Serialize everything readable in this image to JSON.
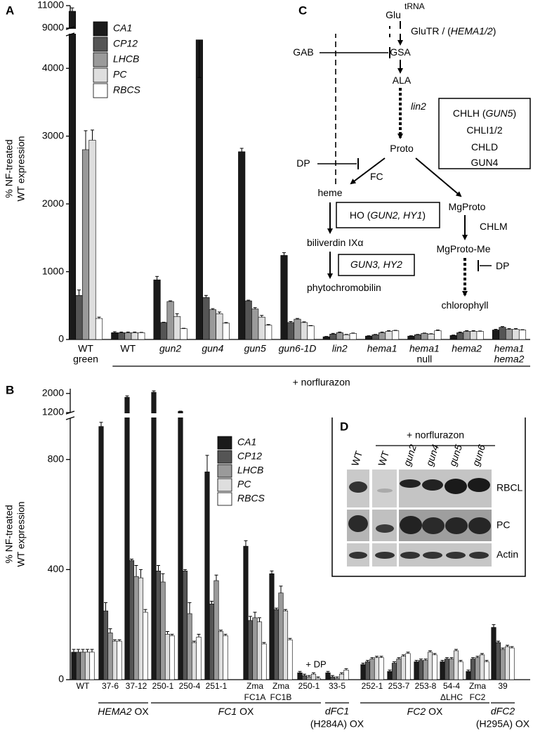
{
  "chart_data": [
    {
      "type": "bar",
      "panel_label": "A",
      "y_label": [
        "% NF-treated",
        "WT expression"
      ],
      "categories": [
        [
          "WT",
          "green"
        ],
        [
          "WT"
        ],
        [
          "gun2"
        ],
        [
          "gun4"
        ],
        [
          "gun5"
        ],
        [
          "gun6-1D"
        ],
        [
          "lin2"
        ],
        [
          "hema1"
        ],
        [
          "hema1",
          "null"
        ],
        [
          "hema2"
        ],
        [
          "hema1",
          "hema2"
        ]
      ],
      "category_italic": [
        [
          false,
          false
        ],
        [
          false
        ],
        [
          true
        ],
        [
          true
        ],
        [
          true
        ],
        [
          true
        ],
        [
          true
        ],
        [
          true
        ],
        [
          true,
          false
        ],
        [
          true
        ],
        [
          true,
          true
        ]
      ],
      "series": [
        {
          "name": "CA1",
          "color": "#1a1a1a",
          "values": [
            10500,
            100,
            880,
            4420,
            2770,
            1240,
            40,
            50,
            50,
            60,
            140
          ],
          "errors": [
            300,
            15,
            50,
            190,
            50,
            40,
            5,
            5,
            5,
            5,
            10
          ]
        },
        {
          "name": "CP12",
          "color": "#555555",
          "values": [
            650,
            100,
            250,
            620,
            570,
            250,
            80,
            70,
            70,
            100,
            180
          ],
          "errors": [
            80,
            10,
            5,
            30,
            10,
            15,
            10,
            5,
            5,
            10,
            10
          ]
        },
        {
          "name": "LHCB",
          "color": "#9a9a9a",
          "values": [
            2800,
            100,
            560,
            440,
            450,
            300,
            100,
            100,
            90,
            120,
            150
          ],
          "errors": [
            280,
            10,
            10,
            15,
            20,
            10,
            10,
            10,
            5,
            10,
            10
          ]
        },
        {
          "name": "PC",
          "color": "#dedede",
          "values": [
            2940,
            100,
            340,
            380,
            330,
            250,
            70,
            120,
            80,
            120,
            150
          ],
          "errors": [
            150,
            10,
            40,
            25,
            25,
            10,
            5,
            10,
            5,
            10,
            10
          ]
        },
        {
          "name": "RBCS",
          "color": "#ffffff",
          "values": [
            310,
            100,
            160,
            240,
            210,
            200,
            90,
            130,
            130,
            120,
            140
          ],
          "errors": [
            20,
            5,
            5,
            10,
            10,
            5,
            5,
            5,
            10,
            5,
            5
          ]
        }
      ],
      "ylim": [
        0,
        11000
      ],
      "ybreak": [
        4500,
        9000
      ],
      "yticks": [
        0,
        1000,
        2000,
        3000,
        4000,
        9000,
        11000
      ],
      "annotation": "+ norflurazon",
      "legend": true
    },
    {
      "type": "bar",
      "panel_label": "B",
      "y_label": [
        "% NF-treated",
        "WT expression"
      ],
      "categories": [
        [
          "WT"
        ],
        [
          "37-6"
        ],
        [
          "37-12"
        ],
        [
          "250-1"
        ],
        [
          "250-4"
        ],
        [
          "251-1"
        ],
        [
          "Zma",
          "FC1A"
        ],
        [
          "Zma",
          "FC1B"
        ],
        [
          "250-1"
        ],
        [
          "33-5"
        ],
        [
          "252-1"
        ],
        [
          "253-7"
        ],
        [
          "253-8"
        ],
        [
          "54-4",
          "ΔLHC"
        ],
        [
          "Zma",
          "FC2"
        ],
        [
          "39"
        ]
      ],
      "series": [
        {
          "name": "CA1",
          "color": "#1a1a1a",
          "values": [
            100,
            920,
            1840,
            2050,
            1250,
            755,
            485,
            385,
            25,
            25,
            55,
            30,
            65,
            65,
            30,
            190
          ],
          "errors": [
            10,
            15,
            60,
            60,
            10,
            60,
            20,
            10,
            5,
            5,
            5,
            5,
            5,
            5,
            5,
            10
          ]
        },
        {
          "name": "CP12",
          "color": "#555555",
          "values": [
            100,
            250,
            433,
            395,
            395,
            275,
            215,
            255,
            15,
            10,
            65,
            60,
            70,
            75,
            75,
            135
          ],
          "errors": [
            10,
            30,
            5,
            20,
            5,
            10,
            15,
            5,
            5,
            5,
            5,
            5,
            5,
            5,
            5,
            5
          ]
        },
        {
          "name": "LHCB",
          "color": "#9a9a9a",
          "values": [
            100,
            170,
            375,
            355,
            240,
            360,
            225,
            315,
            10,
            5,
            75,
            75,
            70,
            75,
            80,
            110
          ],
          "errors": [
            10,
            15,
            40,
            30,
            40,
            20,
            20,
            25,
            5,
            5,
            5,
            5,
            5,
            5,
            5,
            5
          ]
        },
        {
          "name": "PC",
          "color": "#dedede",
          "values": [
            100,
            140,
            370,
            165,
            135,
            175,
            210,
            250,
            20,
            20,
            80,
            85,
            100,
            105,
            90,
            120
          ],
          "errors": [
            10,
            5,
            30,
            10,
            5,
            5,
            15,
            5,
            5,
            5,
            5,
            5,
            5,
            5,
            5,
            5
          ]
        },
        {
          "name": "RBCS",
          "color": "#ffffff",
          "values": [
            100,
            140,
            245,
            160,
            155,
            160,
            130,
            145,
            5,
            35,
            80,
            95,
            90,
            65,
            65,
            115
          ],
          "errors": [
            10,
            5,
            10,
            5,
            10,
            5,
            5,
            5,
            5,
            5,
            5,
            5,
            5,
            5,
            5,
            5
          ]
        }
      ],
      "ylim": [
        0,
        2200
      ],
      "ybreak": [
        950,
        1200
      ],
      "yticks": [
        0,
        400,
        800,
        1200,
        2000
      ],
      "annotation": "+ DP",
      "groups": [
        {
          "italic": "HEMA2",
          "text": "OX"
        },
        {
          "italic": "FC1",
          "text": "OX"
        },
        {
          "italic": "dFC1",
          "text": "(H284A) OX"
        },
        {
          "italic": "FC2",
          "text": "OX"
        },
        {
          "italic": "dFC2",
          "text": "(H295A) OX"
        }
      ],
      "legend": true
    }
  ],
  "diagram": {
    "label": "C",
    "labels": [
      [
        [
          "Glu",
          false
        ]
      ],
      [
        [
          "tRNA",
          false
        ]
      ],
      [
        [
          "GluTR / (",
          false
        ],
        [
          "HEMA1/2",
          true
        ],
        [
          ")",
          false
        ]
      ],
      [
        [
          "GAB",
          false
        ]
      ],
      [
        [
          "GSA",
          false
        ]
      ],
      [
        [
          "ALA",
          false
        ]
      ],
      [
        [
          "lin2",
          true
        ]
      ],
      [
        [
          "Proto",
          false
        ]
      ],
      [
        [
          "CHLH (",
          false
        ],
        [
          "GUN5",
          true
        ],
        [
          ")",
          false
        ]
      ],
      [
        [
          "CHLI1/2",
          false
        ]
      ],
      [
        [
          "CHLD",
          false
        ]
      ],
      [
        [
          "GUN4",
          false
        ]
      ],
      [
        [
          "DP",
          false
        ]
      ],
      [
        [
          "FC",
          false
        ]
      ],
      [
        [
          "heme",
          false
        ]
      ],
      [
        [
          "MgProto",
          false
        ]
      ],
      [
        [
          "HO (",
          false
        ],
        [
          "GUN2, HY1",
          true
        ],
        [
          ")",
          false
        ]
      ],
      [
        [
          "CHLM",
          false
        ]
      ],
      [
        [
          "biliverdin IXα",
          false
        ]
      ],
      [
        [
          "MgProto-Me",
          false
        ]
      ],
      [
        [
          "GUN3, HY2",
          true
        ]
      ],
      [
        [
          "DP",
          false
        ]
      ],
      [
        [
          "phytochromobilin",
          false
        ]
      ],
      [
        [
          "chlorophyll",
          false
        ]
      ]
    ]
  },
  "blot": {
    "label": "D",
    "treatment": "+ norflurazon",
    "lanes": [
      "WT",
      "WT",
      "gun2",
      "gun4",
      "gun5",
      "gun6"
    ],
    "lane_italic": [
      false,
      false,
      true,
      true,
      true,
      true
    ],
    "rows": [
      "RBCL",
      "PC",
      "Actin"
    ]
  }
}
